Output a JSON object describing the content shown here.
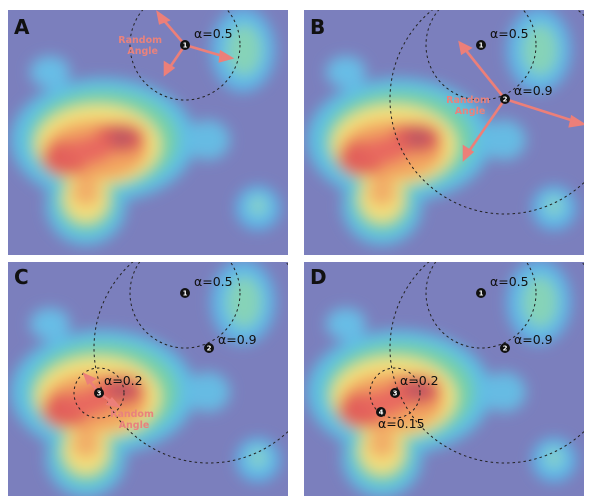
{
  "panels": [
    {
      "label": "A",
      "points": [
        {
          "num": "1",
          "alpha": "α=0.5"
        }
      ],
      "random_angle": [
        "Random",
        "Angle"
      ]
    },
    {
      "label": "B",
      "points": [
        {
          "num": "1",
          "alpha": "α=0.5"
        },
        {
          "num": "2",
          "alpha": "α=0.9"
        }
      ],
      "random_angle": [
        "Random",
        "Angle"
      ]
    },
    {
      "label": "C",
      "points": [
        {
          "num": "1",
          "alpha": "α=0.5"
        },
        {
          "num": "2",
          "alpha": "α=0.9"
        },
        {
          "num": "3",
          "alpha": "α=0.2"
        }
      ],
      "random_angle": [
        "Random",
        "Angle"
      ]
    },
    {
      "label": "D",
      "points": [
        {
          "num": "1",
          "alpha": "α=0.5"
        },
        {
          "num": "2",
          "alpha": "α=0.9"
        },
        {
          "num": "3",
          "alpha": "α=0.2"
        },
        {
          "num": "4",
          "alpha": "α=0.15"
        }
      ],
      "random_angle": []
    }
  ],
  "colors": {
    "background": "#7b7fbd",
    "arrow": "#ec7f79",
    "random_angle_text": "#e9827d",
    "marker": "#111111"
  }
}
